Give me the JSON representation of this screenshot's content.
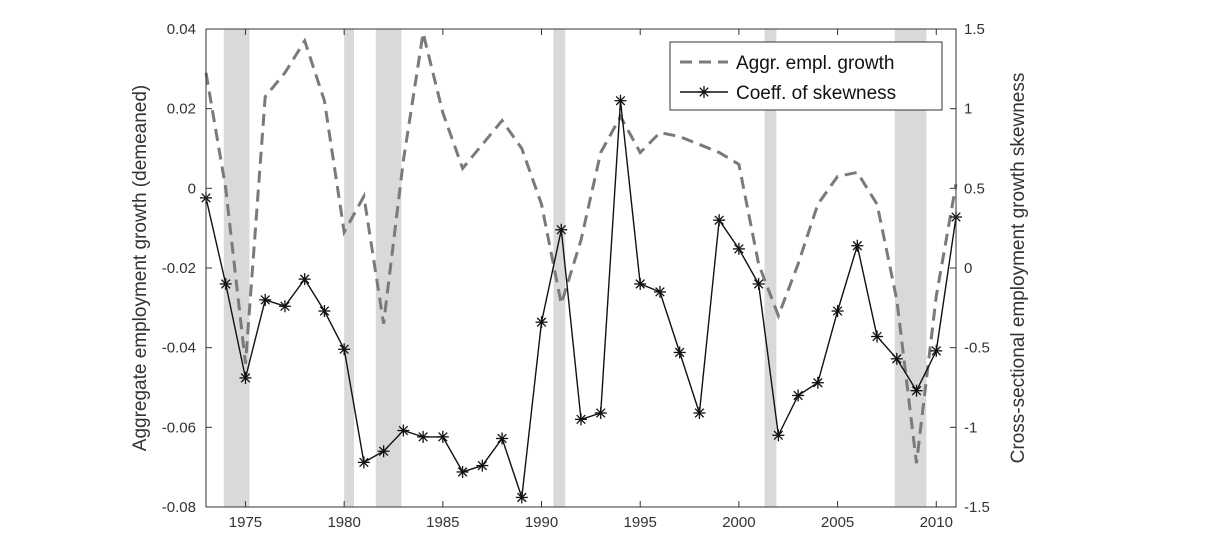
{
  "chart_data": {
    "type": "line",
    "xlabel": "",
    "ylabel_left": "Aggregate employment growth (demeaned)",
    "ylabel_right": "Cross-sectional employment growth skewness",
    "xlim": [
      1973,
      2011
    ],
    "ylim_left": [
      -0.08,
      0.04
    ],
    "ylim_right": [
      -1.5,
      1.5
    ],
    "x_ticks": [
      1975,
      1980,
      1985,
      1990,
      1995,
      2000,
      2005,
      2010
    ],
    "x_tick_labels": [
      "1975",
      "1980",
      "1985",
      "1990",
      "1995",
      "2000",
      "2005",
      "2010"
    ],
    "y_left_ticks": [
      0.04,
      0.02,
      0,
      -0.02,
      -0.04,
      -0.06,
      -0.08
    ],
    "y_left_tick_labels": [
      "0.04",
      "0.02",
      "0",
      "-0.02",
      "-0.04",
      "-0.06",
      "-0.08"
    ],
    "y_right_ticks": [
      1.5,
      1,
      0.5,
      0,
      -0.5,
      -1,
      -1.5
    ],
    "y_right_tick_labels": [
      "1.5",
      "1",
      "0.5",
      "0",
      "-0.5",
      "-1",
      "-1.5"
    ],
    "recessions": [
      [
        1973.9,
        1975.2
      ],
      [
        1980.0,
        1980.5
      ],
      [
        1981.6,
        1982.9
      ],
      [
        1990.6,
        1991.2
      ],
      [
        2001.3,
        2001.9
      ],
      [
        2007.9,
        2009.5
      ]
    ],
    "legend_position": "top-right",
    "series": [
      {
        "name": "Aggr. empl. growth",
        "axis": "left",
        "style": "dashed",
        "color": "#7a7a7a",
        "x": [
          1973,
          1974,
          1975,
          1976,
          1977,
          1978,
          1979,
          1980,
          1981,
          1982,
          1983,
          1984,
          1985,
          1986,
          1987,
          1988,
          1989,
          1990,
          1991,
          1992,
          1993,
          1994,
          1995,
          1996,
          1997,
          1998,
          1999,
          2000,
          2001,
          2002,
          2003,
          2004,
          2005,
          2006,
          2007,
          2008,
          2009,
          2010,
          2011
        ],
        "y": [
          0.029,
          0.0,
          -0.044,
          0.023,
          0.029,
          0.037,
          0.022,
          -0.011,
          -0.002,
          -0.034,
          0.007,
          0.039,
          0.019,
          0.005,
          0.011,
          0.017,
          0.01,
          -0.004,
          -0.029,
          -0.013,
          0.009,
          0.018,
          0.009,
          0.014,
          0.013,
          0.011,
          0.009,
          0.006,
          -0.019,
          -0.032,
          -0.019,
          -0.004,
          0.003,
          0.004,
          -0.004,
          -0.028,
          -0.069,
          -0.027,
          0.001
        ]
      },
      {
        "name": "Coeff. of skewness",
        "axis": "right",
        "style": "solid-asterisk",
        "color": "#111111",
        "x": [
          1973,
          1974,
          1975,
          1976,
          1977,
          1978,
          1979,
          1980,
          1981,
          1982,
          1983,
          1984,
          1985,
          1986,
          1987,
          1988,
          1989,
          1990,
          1991,
          1992,
          1993,
          1994,
          1995,
          1996,
          1997,
          1998,
          1999,
          2000,
          2001,
          2002,
          2003,
          2004,
          2005,
          2006,
          2007,
          2008,
          2009,
          2010,
          2011
        ],
        "y": [
          0.44,
          -0.1,
          -0.69,
          -0.2,
          -0.24,
          -0.07,
          -0.27,
          -0.51,
          -1.22,
          -1.15,
          -1.02,
          -1.06,
          -1.06,
          -1.28,
          -1.24,
          -1.07,
          -1.44,
          -0.34,
          0.24,
          -0.95,
          -0.91,
          1.05,
          -0.1,
          -0.15,
          -0.53,
          -0.91,
          0.3,
          0.12,
          -0.1,
          -1.05,
          -0.8,
          -0.72,
          -0.27,
          0.14,
          -0.43,
          -0.57,
          -0.77,
          -0.52,
          0.32
        ]
      }
    ]
  }
}
